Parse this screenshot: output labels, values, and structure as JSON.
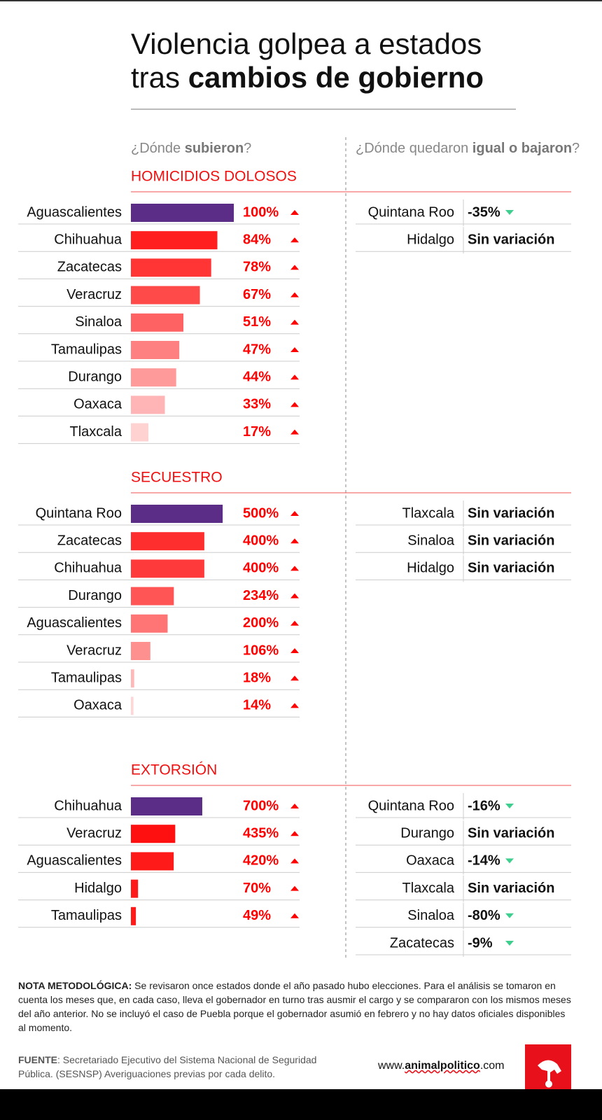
{
  "header": {
    "title_line1": "Violencia golpea a estados",
    "title_line2_light": "tras ",
    "title_line2_bold": "cambios de gobierno"
  },
  "columns": {
    "left": [
      "¿Dónde ",
      "subieron",
      "?"
    ],
    "right": [
      "¿Dónde quedaron ",
      "igual o bajaron",
      "?"
    ]
  },
  "chart_data": [
    {
      "type": "bar",
      "title": "HOMICIDIOS DOLOSOS",
      "categories": [
        "Aguascalientes",
        "Chihuahua",
        "Zacatecas",
        "Veracruz",
        "Sinaloa",
        "Tamaulipas",
        "Durango",
        "Oaxaca",
        "Tlaxcala"
      ],
      "values": [
        100,
        84,
        78,
        67,
        51,
        47,
        44,
        33,
        17
      ],
      "value_labels": [
        "100%",
        "84%",
        "78%",
        "67%",
        "51%",
        "47%",
        "44%",
        "33%",
        "17%"
      ],
      "colors": [
        "#5b2d86",
        "#ff1f1f",
        "#ff3434",
        "#ff4a4a",
        "#ff6262",
        "#ff8080",
        "#ff9a9a",
        "#ffb5b5",
        "#ffd2d2"
      ],
      "xlim": [
        0,
        102
      ],
      "table": {
        "rows": [
          {
            "state": "Quintana Roo",
            "change": "-35%"
          },
          {
            "state": "Hidalgo",
            "change": "Sin variación"
          }
        ]
      }
    },
    {
      "type": "bar",
      "title": "SECUESTRO",
      "categories": [
        "Quintana Roo",
        "Zacatecas",
        "Chihuahua",
        "Durango",
        "Aguascalientes",
        "Veracruz",
        "Tamaulipas",
        "Oaxaca"
      ],
      "values": [
        500,
        400,
        400,
        234,
        200,
        106,
        18,
        14
      ],
      "value_labels": [
        "500%",
        "400%",
        "400%",
        "234%",
        "200%",
        "106%",
        "18%",
        "14%"
      ],
      "colors": [
        "#5b2d86",
        "#ff2e2e",
        "#ff3a3a",
        "#ff5555",
        "#ff7474",
        "#ff9090",
        "#ffb8b8",
        "#ffd6d6"
      ],
      "xlim": [
        0,
        572
      ],
      "table": {
        "rows": [
          {
            "state": "Tlaxcala",
            "change": "Sin variación"
          },
          {
            "state": "Sinaloa",
            "change": "Sin variación"
          },
          {
            "state": "Hidalgo",
            "change": "Sin variación"
          }
        ]
      }
    },
    {
      "type": "bar",
      "title": "EXTORSIÓN",
      "categories": [
        "Chihuahua",
        "Veracruz",
        "Aguascalientes",
        "Hidalgo",
        "Tamaulipas"
      ],
      "values": [
        700,
        435,
        420,
        70,
        49
      ],
      "value_labels": [
        "700%",
        "435%",
        "420%",
        "70%",
        "49%"
      ],
      "colors": [
        "#5b2d86",
        "#ff1010",
        "#ff1a1a",
        "#ff1a1a",
        "#ff1a1a"
      ],
      "xlim": [
        0,
        1030
      ],
      "table": {
        "rows": [
          {
            "state": "Quintana Roo",
            "change": "-16%"
          },
          {
            "state": "Durango",
            "change": "Sin variación"
          },
          {
            "state": "Oaxaca",
            "change": "-14%"
          },
          {
            "state": "Tlaxcala",
            "change": "Sin variación"
          },
          {
            "state": "Sinaloa",
            "change": "-80%"
          },
          {
            "state": "Zacatecas",
            "change": "-9%"
          }
        ]
      }
    }
  ],
  "note": {
    "label": "NOTA METODOLÓGICA:",
    "text": " Se revisaron once estados donde el año pasado hubo elecciones. Para el análisis se tomaron en cuenta los meses que, en cada caso, lleva el gobernador en turno tras ausmir el cargo y se compararon con los mismos meses del año anterior. No se incluyó el caso de Puebla porque el gobernador asumió en febrero y no hay datos oficiales disponibles al momento."
  },
  "source": {
    "label": "FUENTE",
    "text": ": Secretariado Ejecutivo del Sistema Nacional de Seguridad Pública. (SESNSP) Averiguaciones previas por cada delito."
  },
  "website": [
    "www.",
    "animalpolitico",
    ".com"
  ]
}
